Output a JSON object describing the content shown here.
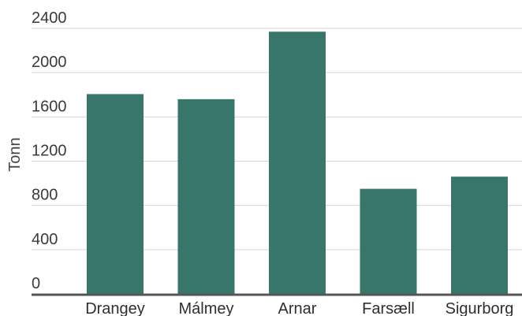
{
  "chart_data": {
    "type": "bar",
    "title": "",
    "xlabel": "",
    "ylabel": "Tonn",
    "categories": [
      "Drangey",
      "Málmey",
      "Arnar",
      "Farsæll",
      "Sigurborg"
    ],
    "values": [
      1806,
      1760,
      2370,
      950,
      1060
    ],
    "ylim": [
      0,
      2400
    ],
    "yticks": [
      0,
      400,
      800,
      1200,
      1600,
      2000,
      2400
    ],
    "grid": true,
    "legend": "none",
    "colors": {
      "bar": "#38766c",
      "grid": "#d4d4d4",
      "baseline": "#555555"
    }
  }
}
